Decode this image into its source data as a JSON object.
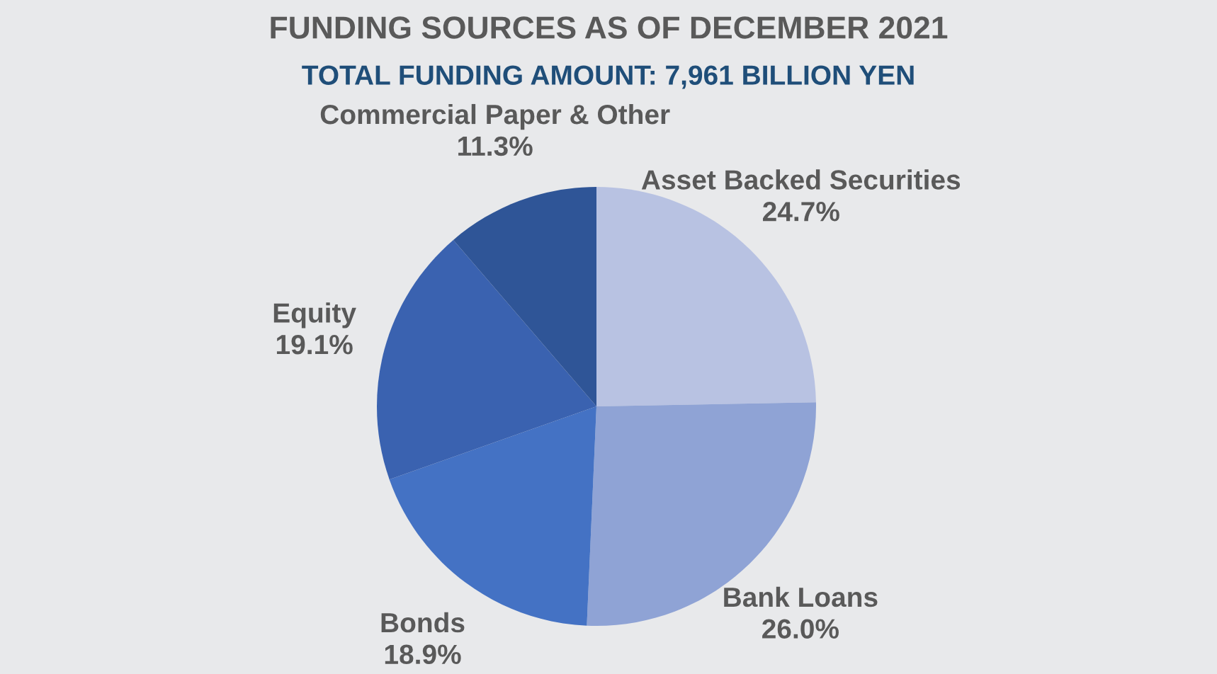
{
  "chart_data": {
    "type": "pie",
    "title": "FUNDING SOURCES AS OF DECEMBER 2021",
    "subtitle": "TOTAL FUNDING AMOUNT: 7,961 BILLION YEN",
    "categories": [
      "Asset Backed Securities",
      "Bank Loans",
      "Bonds",
      "Equity",
      "Commercial Paper & Other"
    ],
    "values": [
      24.7,
      26.0,
      18.9,
      19.1,
      11.3
    ],
    "value_labels": [
      "24.7%",
      "26.0%",
      "18.9%",
      "19.1%",
      "11.3%"
    ],
    "colors": [
      "#b8c2e2",
      "#8fa3d5",
      "#4472c4",
      "#3a62b0",
      "#2f5597"
    ],
    "legend": false
  }
}
